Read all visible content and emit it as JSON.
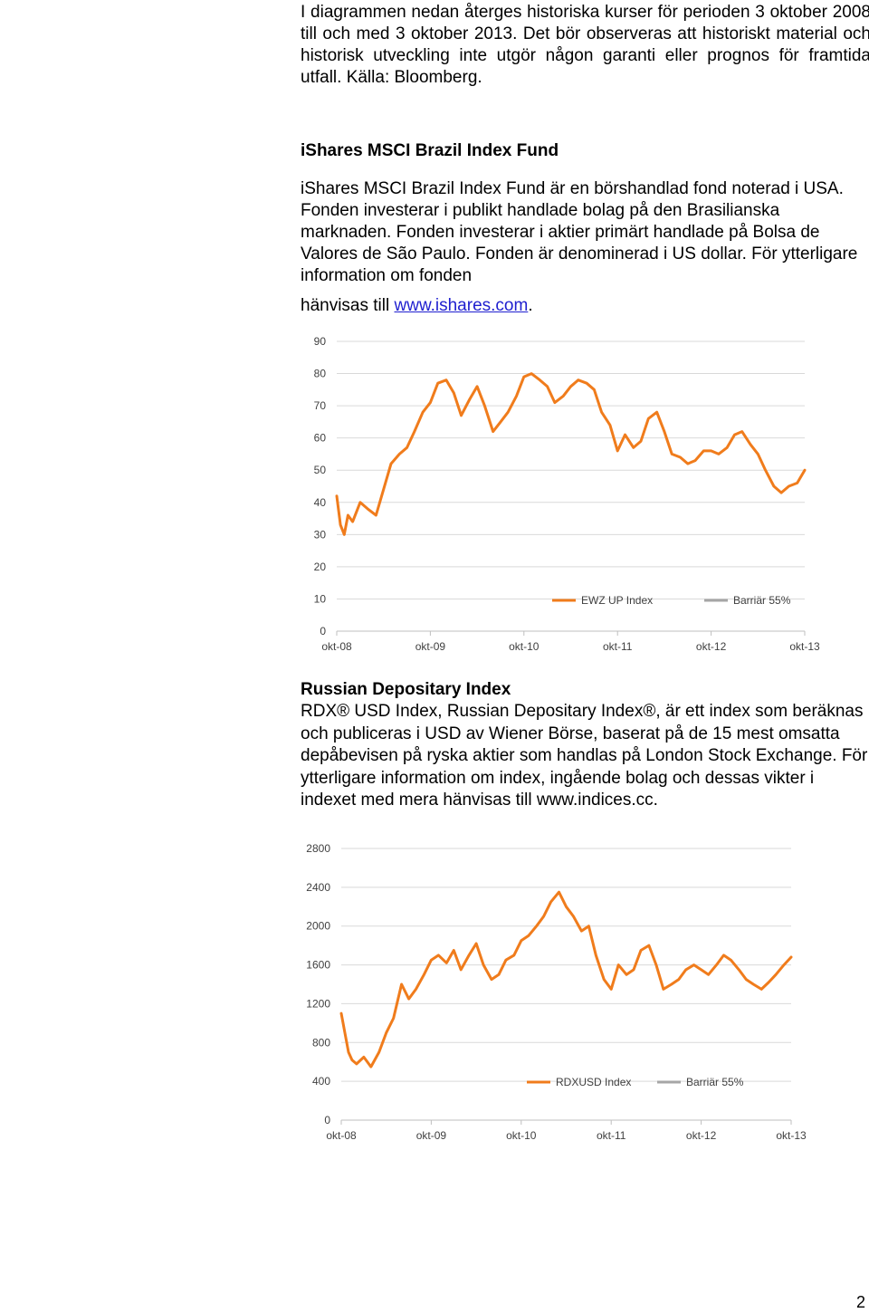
{
  "intro": "I diagrammen nedan återges historiska kurser för perioden 3 oktober 2008 till och med 3 oktober 2013. Det bör observeras att historiskt material och historisk utveckling inte utgör någon garanti eller prognos för framtida utfall. Källa: Bloomberg.",
  "brazil": {
    "title": "iShares MSCI Brazil Index Fund",
    "text": "iShares MSCI Brazil Index Fund är en börshandlad fond noterad i USA. Fonden investerar i publikt handlade bolag på den Brasilianska marknaden. Fonden investerar i aktier primärt handlade på Bolsa de Valores de São Paulo. Fonden är denominerad i US dollar. För ytterligare information om fonden",
    "link_prefix": "hänvisas till ",
    "link_text": "www.ishares.com",
    "link_suffix": "."
  },
  "russia": {
    "title": "Russian Depositary Index",
    "text": "RDX® USD Index, Russian Depositary Index®, är ett index som beräknas och publiceras i USD av Wiener Börse, baserat på de 15 mest omsatta depåbevisen på ryska aktier som handlas på London Stock Exchange. För ytterligare information om index, ingående bolag och dessas vikter i indexet med mera hänvisas till www.indices.cc."
  },
  "page_number": "2",
  "colors": {
    "series": "#f07c1c",
    "barrier": "#a6a6a6",
    "grid": "#d9d9d9",
    "axis": "#bfbfbf"
  },
  "chart_data": [
    {
      "type": "line",
      "title": "",
      "x_tick_labels": [
        "okt-08",
        "okt-09",
        "okt-10",
        "okt-11",
        "okt-12",
        "okt-13"
      ],
      "x_range": [
        2008.75,
        2013.75
      ],
      "ylim": [
        0,
        90
      ],
      "y_ticks": [
        0,
        10,
        20,
        30,
        40,
        50,
        60,
        70,
        80,
        90
      ],
      "grid": true,
      "legend_position": "bottom-right",
      "series": [
        {
          "name": "EWZ UP Index",
          "x": [
            2008.75,
            2008.79,
            2008.83,
            2008.87,
            2008.92,
            2009.0,
            2009.08,
            2009.17,
            2009.25,
            2009.33,
            2009.42,
            2009.5,
            2009.58,
            2009.67,
            2009.75,
            2009.83,
            2009.92,
            2010.0,
            2010.08,
            2010.17,
            2010.25,
            2010.33,
            2010.42,
            2010.5,
            2010.58,
            2010.67,
            2010.75,
            2010.83,
            2010.92,
            2011.0,
            2011.08,
            2011.17,
            2011.25,
            2011.33,
            2011.42,
            2011.5,
            2011.58,
            2011.67,
            2011.75,
            2011.83,
            2011.92,
            2012.0,
            2012.08,
            2012.17,
            2012.25,
            2012.33,
            2012.42,
            2012.5,
            2012.58,
            2012.67,
            2012.75,
            2012.83,
            2012.92,
            2013.0,
            2013.08,
            2013.17,
            2013.25,
            2013.33,
            2013.42,
            2013.5,
            2013.58,
            2013.67,
            2013.75
          ],
          "y": [
            42,
            33,
            30,
            36,
            34,
            40,
            38,
            36,
            44,
            52,
            55,
            57,
            62,
            68,
            71,
            77,
            78,
            74,
            67,
            72,
            76,
            70,
            62,
            65,
            68,
            73,
            79,
            80,
            78,
            76,
            71,
            73,
            76,
            78,
            77,
            75,
            68,
            64,
            56,
            61,
            57,
            59,
            66,
            68,
            62,
            55,
            54,
            52,
            53,
            56,
            56,
            55,
            57,
            61,
            62,
            58,
            55,
            50,
            45,
            43,
            45,
            46,
            50
          ]
        },
        {
          "name": "Barriär 55%",
          "legend_only": true
        }
      ]
    },
    {
      "type": "line",
      "title": "",
      "x_tick_labels": [
        "okt-08",
        "okt-09",
        "okt-10",
        "okt-11",
        "okt-12",
        "okt-13"
      ],
      "x_range": [
        2008.75,
        2013.75
      ],
      "ylim": [
        0,
        2800
      ],
      "y_ticks": [
        0,
        400,
        800,
        1200,
        1600,
        2000,
        2400,
        2800
      ],
      "grid": true,
      "legend_position": "bottom-right",
      "series": [
        {
          "name": "RDXUSD Index",
          "x": [
            2008.75,
            2008.79,
            2008.83,
            2008.87,
            2008.92,
            2009.0,
            2009.08,
            2009.17,
            2009.25,
            2009.33,
            2009.42,
            2009.5,
            2009.58,
            2009.67,
            2009.75,
            2009.83,
            2009.92,
            2010.0,
            2010.08,
            2010.17,
            2010.25,
            2010.33,
            2010.42,
            2010.5,
            2010.58,
            2010.67,
            2010.75,
            2010.83,
            2010.92,
            2011.0,
            2011.08,
            2011.17,
            2011.25,
            2011.33,
            2011.42,
            2011.5,
            2011.58,
            2011.67,
            2011.75,
            2011.83,
            2011.92,
            2012.0,
            2012.08,
            2012.17,
            2012.25,
            2012.33,
            2012.42,
            2012.5,
            2012.58,
            2012.67,
            2012.75,
            2012.83,
            2012.92,
            2013.0,
            2013.08,
            2013.17,
            2013.25,
            2013.33,
            2013.42,
            2013.5,
            2013.58,
            2013.67,
            2013.75
          ],
          "y": [
            1100,
            900,
            700,
            620,
            580,
            650,
            550,
            700,
            900,
            1050,
            1400,
            1250,
            1350,
            1500,
            1650,
            1700,
            1620,
            1750,
            1550,
            1700,
            1820,
            1600,
            1450,
            1500,
            1650,
            1700,
            1850,
            1900,
            2000,
            2100,
            2250,
            2350,
            2200,
            2100,
            1950,
            2000,
            1700,
            1450,
            1350,
            1600,
            1500,
            1550,
            1750,
            1800,
            1600,
            1350,
            1400,
            1450,
            1550,
            1600,
            1550,
            1500,
            1600,
            1700,
            1650,
            1550,
            1450,
            1400,
            1350,
            1420,
            1500,
            1600,
            1680
          ]
        },
        {
          "name": "Barriär 55%",
          "legend_only": true
        }
      ]
    }
  ]
}
